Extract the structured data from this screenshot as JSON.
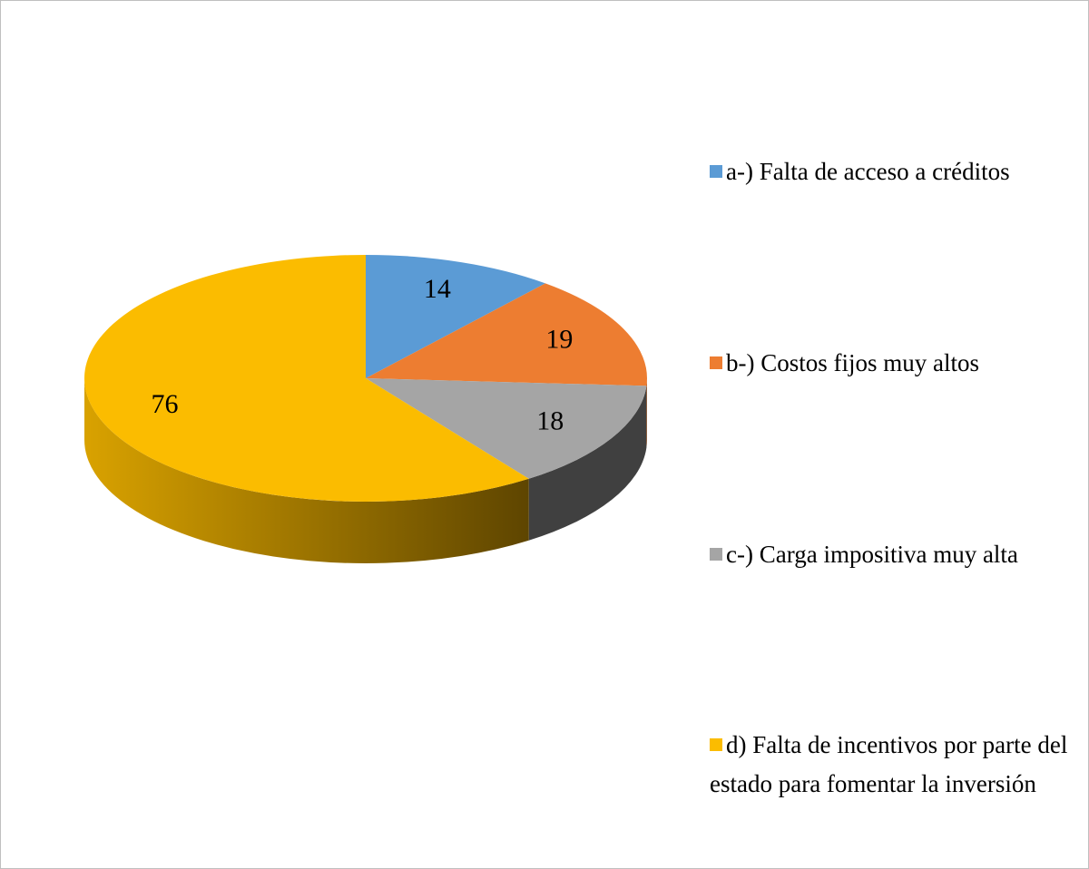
{
  "chart_data": {
    "type": "pie",
    "categories": [
      "a-) Falta de acceso a créditos",
      "b-) Costos fijos muy altos",
      "c-) Carga impositiva muy alta",
      "d) Falta de incentivos por parte del estado para fomentar la inversión"
    ],
    "values": [
      14,
      19,
      18,
      76
    ],
    "colors": [
      "#5b9bd5",
      "#ed7d31",
      "#a5a5a5",
      "#fbbc00"
    ],
    "legend": "right"
  }
}
